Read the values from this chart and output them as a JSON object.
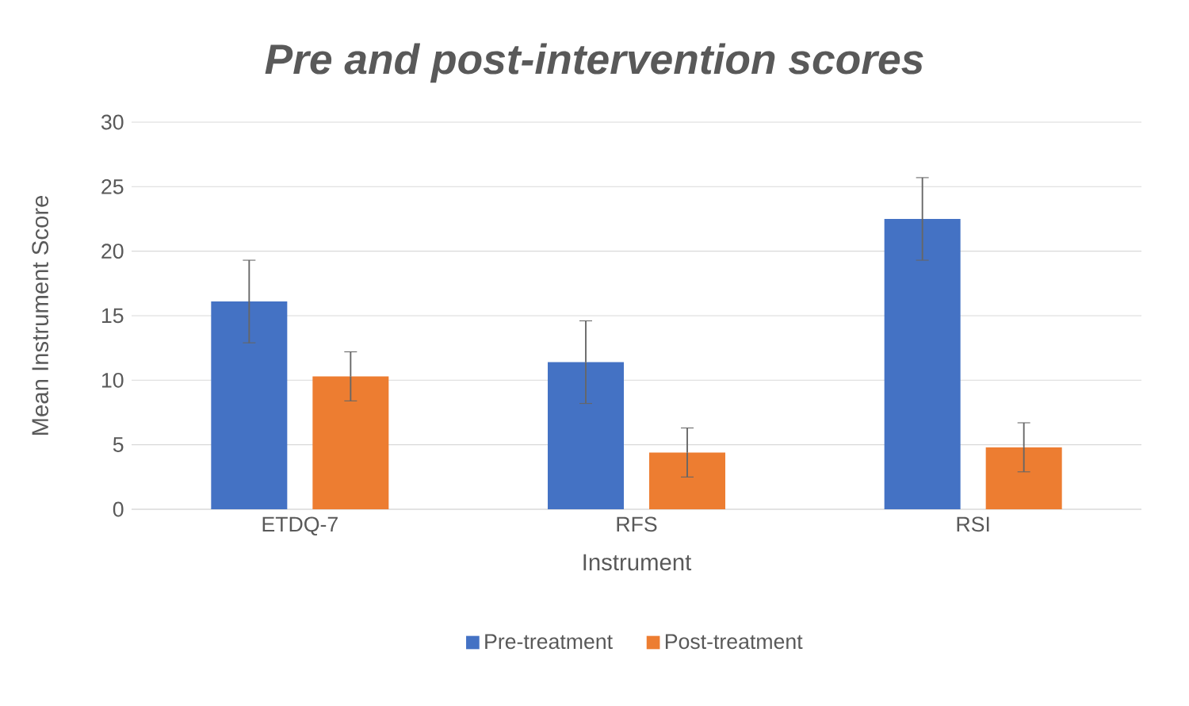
{
  "chart_data": {
    "type": "bar",
    "title": "Pre and post-intervention scores",
    "xlabel": "Instrument",
    "ylabel": "Mean Instrument Score",
    "categories": [
      "ETDQ-7",
      "RFS",
      "RSI"
    ],
    "series": [
      {
        "name": "Pre-treatment",
        "color": "#4472c4",
        "values": [
          16.1,
          11.4,
          22.5
        ],
        "errors": [
          3.2,
          3.2,
          3.2
        ]
      },
      {
        "name": "Post-treatment",
        "color": "#ed7d31",
        "values": [
          10.3,
          4.4,
          4.8
        ],
        "errors": [
          1.9,
          1.9,
          1.9
        ]
      }
    ],
    "ylim": [
      0,
      30
    ],
    "yticks": [
      0,
      5,
      10,
      15,
      20,
      25,
      30
    ],
    "grid": "y",
    "legend": "bottom"
  }
}
